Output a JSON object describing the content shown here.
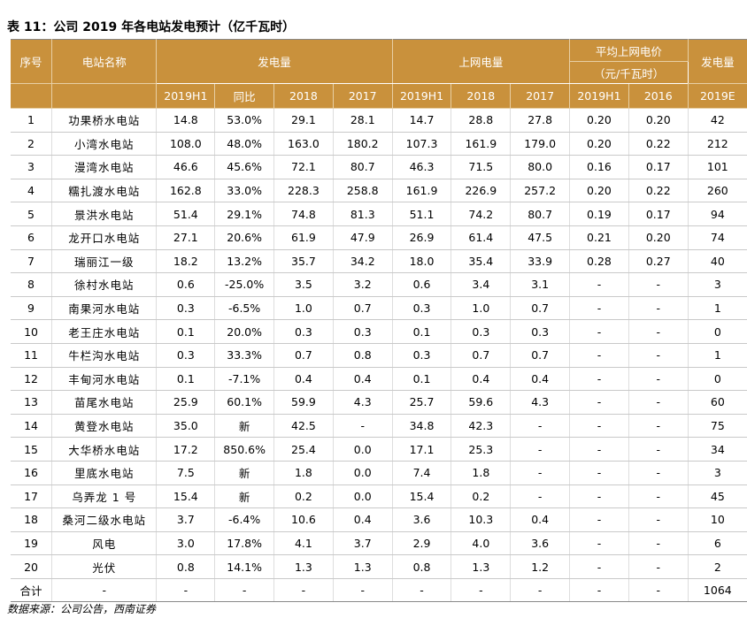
{
  "title": "表 11：公司 2019 年各电站发电预计（亿千瓦时）",
  "header": {
    "seq": "序号",
    "name": "电站名称",
    "gen": "发电量",
    "grid": "上网电量",
    "price_line1": "平均上网电价",
    "price_line2": "（元/千瓦时）",
    "gen2019e": "发电量",
    "sub": [
      "2019H1",
      "同比",
      "2018",
      "2017",
      "2019H1",
      "2018",
      "2017",
      "2019H1",
      "2016",
      "2019E"
    ]
  },
  "rows": [
    [
      "1",
      "功果桥水电站",
      "14.8",
      "53.0%",
      "29.1",
      "28.1",
      "14.7",
      "28.8",
      "27.8",
      "0.20",
      "0.20",
      "42"
    ],
    [
      "2",
      "小湾水电站",
      "108.0",
      "48.0%",
      "163.0",
      "180.2",
      "107.3",
      "161.9",
      "179.0",
      "0.20",
      "0.22",
      "212"
    ],
    [
      "3",
      "漫湾水电站",
      "46.6",
      "45.6%",
      "72.1",
      "80.7",
      "46.3",
      "71.5",
      "80.0",
      "0.16",
      "0.17",
      "101"
    ],
    [
      "4",
      "糯扎渡水电站",
      "162.8",
      "33.0%",
      "228.3",
      "258.8",
      "161.9",
      "226.9",
      "257.2",
      "0.20",
      "0.22",
      "260"
    ],
    [
      "5",
      "景洪水电站",
      "51.4",
      "29.1%",
      "74.8",
      "81.3",
      "51.1",
      "74.2",
      "80.7",
      "0.19",
      "0.17",
      "94"
    ],
    [
      "6",
      "龙开口水电站",
      "27.1",
      "20.6%",
      "61.9",
      "47.9",
      "26.9",
      "61.4",
      "47.5",
      "0.21",
      "0.20",
      "74"
    ],
    [
      "7",
      "瑞丽江一级",
      "18.2",
      "13.2%",
      "35.7",
      "34.2",
      "18.0",
      "35.4",
      "33.9",
      "0.28",
      "0.27",
      "40"
    ],
    [
      "8",
      "徐村水电站",
      "0.6",
      "-25.0%",
      "3.5",
      "3.2",
      "0.6",
      "3.4",
      "3.1",
      "-",
      "-",
      "3"
    ],
    [
      "9",
      "南果河水电站",
      "0.3",
      "-6.5%",
      "1.0",
      "0.7",
      "0.3",
      "1.0",
      "0.7",
      "-",
      "-",
      "1"
    ],
    [
      "10",
      "老王庄水电站",
      "0.1",
      "20.0%",
      "0.3",
      "0.3",
      "0.1",
      "0.3",
      "0.3",
      "-",
      "-",
      "0"
    ],
    [
      "11",
      "牛栏沟水电站",
      "0.3",
      "33.3%",
      "0.7",
      "0.8",
      "0.3",
      "0.7",
      "0.7",
      "-",
      "-",
      "1"
    ],
    [
      "12",
      "丰甸河水电站",
      "0.1",
      "-7.1%",
      "0.4",
      "0.4",
      "0.1",
      "0.4",
      "0.4",
      "-",
      "-",
      "0"
    ],
    [
      "13",
      "苗尾水电站",
      "25.9",
      "60.1%",
      "59.9",
      "4.3",
      "25.7",
      "59.6",
      "4.3",
      "-",
      "-",
      "60"
    ],
    [
      "14",
      "黄登水电站",
      "35.0",
      "新",
      "42.5",
      "-",
      "34.8",
      "42.3",
      "-",
      "-",
      "-",
      "75"
    ],
    [
      "15",
      "大华桥水电站",
      "17.2",
      "850.6%",
      "25.4",
      "0.0",
      "17.1",
      "25.3",
      "-",
      "-",
      "-",
      "34"
    ],
    [
      "16",
      "里底水电站",
      "7.5",
      "新",
      "1.8",
      "0.0",
      "7.4",
      "1.8",
      "-",
      "-",
      "-",
      "3"
    ],
    [
      "17",
      "乌弄龙 1 号",
      "15.4",
      "新",
      "0.2",
      "0.0",
      "15.4",
      "0.2",
      "-",
      "-",
      "-",
      "45"
    ],
    [
      "18",
      "桑河二级水电站",
      "3.7",
      "-6.4%",
      "10.6",
      "0.4",
      "3.6",
      "10.3",
      "0.4",
      "-",
      "-",
      "10"
    ],
    [
      "19",
      "风电",
      "3.0",
      "17.8%",
      "4.1",
      "3.7",
      "2.9",
      "4.0",
      "3.6",
      "-",
      "-",
      "6"
    ],
    [
      "20",
      "光伏",
      "0.8",
      "14.1%",
      "1.3",
      "1.3",
      "0.8",
      "1.3",
      "1.2",
      "-",
      "-",
      "2"
    ]
  ],
  "total": [
    "合计",
    "-",
    "-",
    "-",
    "-",
    "-",
    "-",
    "-",
    "-",
    "-",
    "-",
    "1064"
  ],
  "source": "数据来源：公司公告，西南证券"
}
